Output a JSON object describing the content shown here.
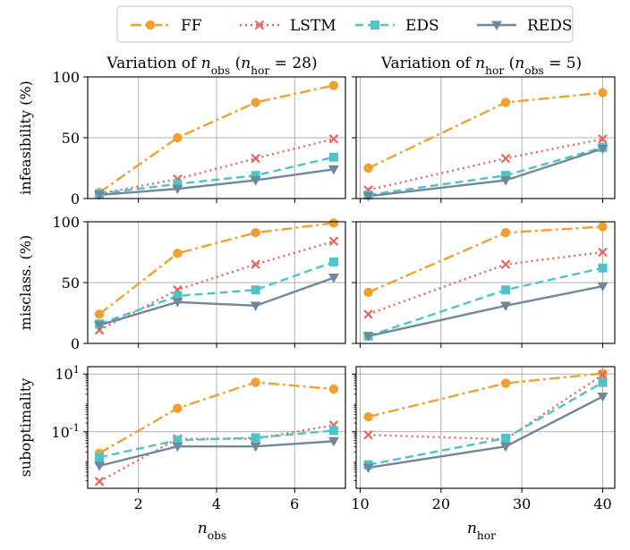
{
  "legend": {
    "entries": [
      {
        "name": "FF",
        "color": "#f0a030",
        "dash": "12,4,3,4",
        "marker": "circle"
      },
      {
        "name": "LSTM",
        "color": "#e8645a",
        "dash": "2,4",
        "marker": "x"
      },
      {
        "name": "EDS",
        "color": "#4fc4c8",
        "dash": "9,5",
        "marker": "square"
      },
      {
        "name": "REDS",
        "color": "#70889c",
        "dash": "",
        "marker": "triangle-down"
      }
    ]
  },
  "columns": [
    {
      "title": "Variation of n_obs (n_hor = 28)",
      "xlabel": "n_obs"
    },
    {
      "title": "Variation of n_hor (n_obs = 5)",
      "xlabel": "n_hor"
    }
  ],
  "chart_data": [
    {
      "type": "line",
      "row": "infeasibility",
      "col": "obs",
      "ylabel": "infeasibility (%)",
      "yscale": "linear",
      "ylim": [
        0,
        100
      ],
      "yticks": [
        0,
        50,
        100
      ],
      "ytick_labels": [
        "0",
        "50",
        "100"
      ],
      "xlim": [
        0.7,
        7.3
      ],
      "xticks": [
        2,
        4,
        6
      ],
      "xtick_labels": [
        "2",
        "4",
        "6"
      ],
      "x": [
        1,
        3,
        5,
        7
      ],
      "series": [
        {
          "name": "FF",
          "values": [
            5,
            50,
            79,
            93
          ]
        },
        {
          "name": "LSTM",
          "values": [
            4,
            16,
            33,
            49
          ]
        },
        {
          "name": "EDS",
          "values": [
            4,
            12,
            19,
            34
          ]
        },
        {
          "name": "REDS",
          "values": [
            3,
            8,
            15,
            24
          ]
        }
      ]
    },
    {
      "type": "line",
      "row": "infeasibility",
      "col": "hor",
      "ylabel": "infeasibility (%)",
      "yscale": "linear",
      "ylim": [
        0,
        100
      ],
      "yticks": [
        0,
        50,
        100
      ],
      "ytick_labels": [
        "0",
        "50",
        "100"
      ],
      "xlim": [
        9.5,
        41.5
      ],
      "xticks": [
        10,
        20,
        30,
        40
      ],
      "xtick_labels": [
        "10",
        "20",
        "30",
        "40"
      ],
      "x": [
        11,
        28,
        40
      ],
      "series": [
        {
          "name": "FF",
          "values": [
            25,
            79,
            87
          ]
        },
        {
          "name": "LSTM",
          "values": [
            7,
            33,
            49
          ]
        },
        {
          "name": "EDS",
          "values": [
            3,
            19,
            42
          ]
        },
        {
          "name": "REDS",
          "values": [
            2,
            15,
            41
          ]
        }
      ]
    },
    {
      "type": "line",
      "row": "misclass",
      "col": "obs",
      "ylabel": "misclass. (%)",
      "yscale": "linear",
      "ylim": [
        0,
        100
      ],
      "yticks": [
        0,
        50,
        100
      ],
      "ytick_labels": [
        "0",
        "50",
        "100"
      ],
      "xlim": [
        0.7,
        7.3
      ],
      "xticks": [
        2,
        4,
        6
      ],
      "xtick_labels": [
        "2",
        "4",
        "6"
      ],
      "x": [
        1,
        3,
        5,
        7
      ],
      "series": [
        {
          "name": "FF",
          "values": [
            24,
            74,
            91,
            99
          ]
        },
        {
          "name": "LSTM",
          "values": [
            11,
            44,
            65,
            84
          ]
        },
        {
          "name": "EDS",
          "values": [
            16,
            39,
            44,
            67
          ]
        },
        {
          "name": "REDS",
          "values": [
            15,
            34,
            31,
            54
          ]
        }
      ]
    },
    {
      "type": "line",
      "row": "misclass",
      "col": "hor",
      "ylabel": "misclass. (%)",
      "yscale": "linear",
      "ylim": [
        0,
        100
      ],
      "yticks": [
        0,
        50,
        100
      ],
      "ytick_labels": [
        "0",
        "50",
        "100"
      ],
      "xlim": [
        9.5,
        41.5
      ],
      "xticks": [
        10,
        20,
        30,
        40
      ],
      "xtick_labels": [
        "10",
        "20",
        "30",
        "40"
      ],
      "x": [
        11,
        28,
        40
      ],
      "series": [
        {
          "name": "FF",
          "values": [
            42,
            91,
            96
          ]
        },
        {
          "name": "LSTM",
          "values": [
            24,
            65,
            75
          ]
        },
        {
          "name": "EDS",
          "values": [
            6,
            44,
            62
          ]
        },
        {
          "name": "REDS",
          "values": [
            6,
            31,
            47
          ]
        }
      ]
    },
    {
      "type": "line",
      "row": "suboptimality",
      "col": "obs",
      "ylabel": "suboptimality",
      "yscale": "log",
      "ylim": [
        0.0011,
        18
      ],
      "yticks": [
        0.1,
        10
      ],
      "ytick_labels": [
        "10^-1",
        "10^1"
      ],
      "xlim": [
        0.7,
        7.3
      ],
      "xticks": [
        2,
        4,
        6
      ],
      "xtick_labels": [
        "2",
        "4",
        "6"
      ],
      "x": [
        1,
        3,
        5,
        7
      ],
      "series": [
        {
          "name": "FF",
          "values": [
            0.018,
            0.65,
            5.2,
            3.0
          ]
        },
        {
          "name": "LSTM",
          "values": [
            0.0019,
            0.057,
            0.057,
            0.17
          ]
        },
        {
          "name": "EDS",
          "values": [
            0.013,
            0.051,
            0.062,
            0.11
          ]
        },
        {
          "name": "REDS",
          "values": [
            0.0066,
            0.031,
            0.031,
            0.047
          ]
        }
      ]
    },
    {
      "type": "line",
      "row": "suboptimality",
      "col": "hor",
      "ylabel": "suboptimality",
      "yscale": "log",
      "ylim": [
        0.0011,
        18
      ],
      "yticks": [
        0.1,
        10
      ],
      "ytick_labels": [
        "10^-1",
        "10^1"
      ],
      "xlim": [
        9.5,
        41.5
      ],
      "xticks": [
        10,
        20,
        30,
        40
      ],
      "xtick_labels": [
        "10",
        "20",
        "30",
        "40"
      ],
      "x": [
        11,
        28,
        40
      ],
      "series": [
        {
          "name": "FF",
          "values": [
            0.33,
            4.8,
            10.5
          ]
        },
        {
          "name": "LSTM",
          "values": [
            0.078,
            0.055,
            9.4
          ]
        },
        {
          "name": "EDS",
          "values": [
            0.0072,
            0.06,
            5.1
          ]
        },
        {
          "name": "REDS",
          "values": [
            0.0057,
            0.031,
            1.65
          ]
        }
      ]
    }
  ]
}
